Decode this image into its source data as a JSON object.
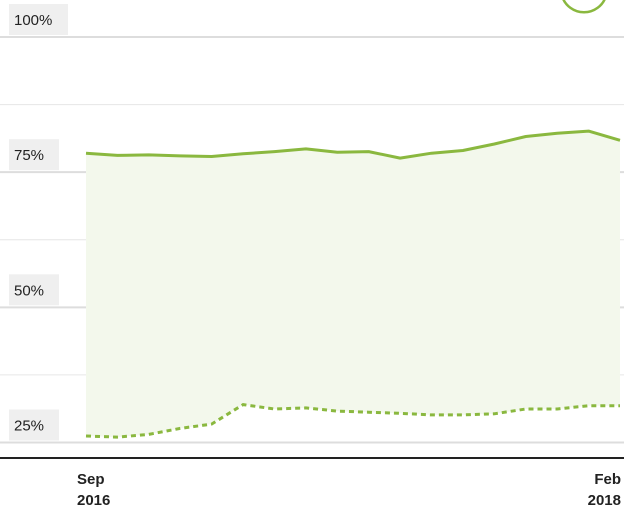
{
  "chart_data": {
    "type": "line",
    "title": "",
    "xlabel": "",
    "ylabel": "",
    "x_start": "Sep 2016",
    "x_end": "Feb 2018",
    "x_tick_labels": [
      {
        "month": "Sep",
        "year": "2016"
      },
      {
        "month": "Feb",
        "year": "2018"
      }
    ],
    "y_tick_labels": [
      "100%",
      "75%",
      "50%",
      "25%"
    ],
    "yticks": [
      100,
      75,
      50,
      25
    ],
    "ylim": [
      22.5,
      100
    ],
    "grid": true,
    "series": [
      {
        "style": "solid",
        "color": "#8ab83f",
        "values": [
          78.5,
          78.1,
          78.2,
          78.0,
          77.9,
          78.4,
          78.8,
          79.3,
          78.7,
          78.8,
          77.6,
          78.5,
          79.0,
          80.2,
          81.6,
          82.2,
          82.6,
          80.9
        ]
      },
      {
        "style": "dotted",
        "color": "#8ab83f",
        "values": [
          26.2,
          26.0,
          26.5,
          27.6,
          28.4,
          32.0,
          31.2,
          31.4,
          30.8,
          30.6,
          30.4,
          30.1,
          30.1,
          30.3,
          31.2,
          31.2,
          31.8,
          31.8
        ]
      }
    ],
    "fill_color": "#f3f8ec",
    "gridline_color": "#e6e6e6"
  }
}
